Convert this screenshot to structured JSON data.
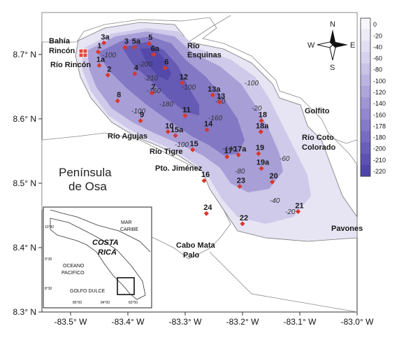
{
  "axes": {
    "x_ticks": [
      "-83.5° W",
      "-83.4° W",
      "-83.3° W",
      "-83.2° W",
      "-83.1° W",
      "-83.0° W"
    ],
    "y_ticks": [
      "8.7° N",
      "8.6° N",
      "8.5° N",
      "8.4° N",
      "8.3° N"
    ]
  },
  "places": {
    "bahia_rincon_1": "Bahía",
    "bahia_rincon_2": "Rincón",
    "rio_rincon": "Río Rincón",
    "rio_esquinas_1": "Río",
    "rio_esquinas_2": "Esquinas",
    "golfito": "Golfito",
    "rio_coto_1": "Río Coto",
    "rio_coto_2": "Colorado",
    "rio_agujas": "Río Agujas",
    "rio_tigre": "Río Tigre",
    "pto_jimenez": "Pto. Jiménez",
    "peninsula_1": "Península",
    "peninsula_2": "de Osa",
    "cabo_mata_palo_1": "Cabo Mata",
    "cabo_mata_palo_2": "Palo",
    "pavones": "Pavones"
  },
  "compass": {
    "n": "N",
    "s": "S",
    "e": "E",
    "w": "W"
  },
  "legend": {
    "labels": [
      "0",
      "-20",
      "-40",
      "-60",
      "-80",
      "-100",
      "-120",
      "-140",
      "-160",
      "-178",
      "-180",
      "-200",
      "-210",
      "-220"
    ],
    "colors": [
      "#f7f6fb",
      "#edebf6",
      "#e2def1",
      "#d6d1ec",
      "#c9c3e6",
      "#bcb4e0",
      "#aea5da",
      "#a096d4",
      "#9388cd",
      "#857ac6",
      "#776cbf",
      "#6a5fb8",
      "#5d52b1",
      "#4f45a9"
    ]
  },
  "contour_labels": [
    "-100",
    "-200",
    "-210",
    "-160",
    "-180",
    "-100",
    "-60",
    "-20",
    "-160",
    "-140",
    "-100",
    "-80",
    "-60",
    "-40",
    "-20",
    "-100",
    "-100"
  ],
  "stations": [
    {
      "id": "1",
      "lon": -83.452,
      "lat": 8.704
    },
    {
      "id": "1a",
      "lon": -83.45,
      "lat": 8.683
    },
    {
      "id": "2",
      "lon": -83.435,
      "lat": 8.668
    },
    {
      "id": "3",
      "lon": -83.405,
      "lat": 8.711
    },
    {
      "id": "3a",
      "lon": -83.442,
      "lat": 8.718
    },
    {
      "id": "4",
      "lon": -83.388,
      "lat": 8.67
    },
    {
      "id": "5",
      "lon": -83.363,
      "lat": 8.717
    },
    {
      "id": "5a",
      "lon": -83.388,
      "lat": 8.711
    },
    {
      "id": "6",
      "lon": -83.335,
      "lat": 8.679
    },
    {
      "id": "6a",
      "lon": -83.355,
      "lat": 8.7
    },
    {
      "id": "7",
      "lon": -83.358,
      "lat": 8.64
    },
    {
      "id": "8",
      "lon": -83.418,
      "lat": 8.628
    },
    {
      "id": "9",
      "lon": -83.378,
      "lat": 8.597
    },
    {
      "id": "10",
      "lon": -83.33,
      "lat": 8.58
    },
    {
      "id": "11",
      "lon": -83.3,
      "lat": 8.605
    },
    {
      "id": "12",
      "lon": -83.305,
      "lat": 8.656
    },
    {
      "id": "13",
      "lon": -83.24,
      "lat": 8.626
    },
    {
      "id": "13a",
      "lon": -83.252,
      "lat": 8.637
    },
    {
      "id": "14",
      "lon": -83.262,
      "lat": 8.583
    },
    {
      "id": "15",
      "lon": -83.287,
      "lat": 8.552
    },
    {
      "id": "15a",
      "lon": -83.317,
      "lat": 8.574
    },
    {
      "id": "16",
      "lon": -83.267,
      "lat": 8.504
    },
    {
      "id": "17",
      "lon": -83.227,
      "lat": 8.541
    },
    {
      "id": "17a",
      "lon": -83.207,
      "lat": 8.544
    },
    {
      "id": "18",
      "lon": -83.167,
      "lat": 8.597
    },
    {
      "id": "18a",
      "lon": -83.168,
      "lat": 8.58
    },
    {
      "id": "19",
      "lon": -83.172,
      "lat": 8.546
    },
    {
      "id": "19a",
      "lon": -83.167,
      "lat": 8.523
    },
    {
      "id": "20",
      "lon": -83.148,
      "lat": 8.502
    },
    {
      "id": "21",
      "lon": -83.103,
      "lat": 8.456
    },
    {
      "id": "22",
      "lon": -83.2,
      "lat": 8.437
    },
    {
      "id": "23",
      "lon": -83.205,
      "lat": 8.495
    },
    {
      "id": "24",
      "lon": -83.263,
      "lat": 8.453
    }
  ],
  "inset": {
    "mar_1": "MAR",
    "mar_2": "CARIBE",
    "country_1": "COSTA",
    "country_2": "RICA",
    "ocean_1": "OCEANO",
    "ocean_2": "PACIFICO",
    "gulf": "GOLFO DULCE",
    "lat1": "10°30",
    "lat2": "9°30",
    "lat3": "8°30",
    "lon1": "85°00",
    "lon2": "84°00",
    "lon3": "83°00"
  }
}
